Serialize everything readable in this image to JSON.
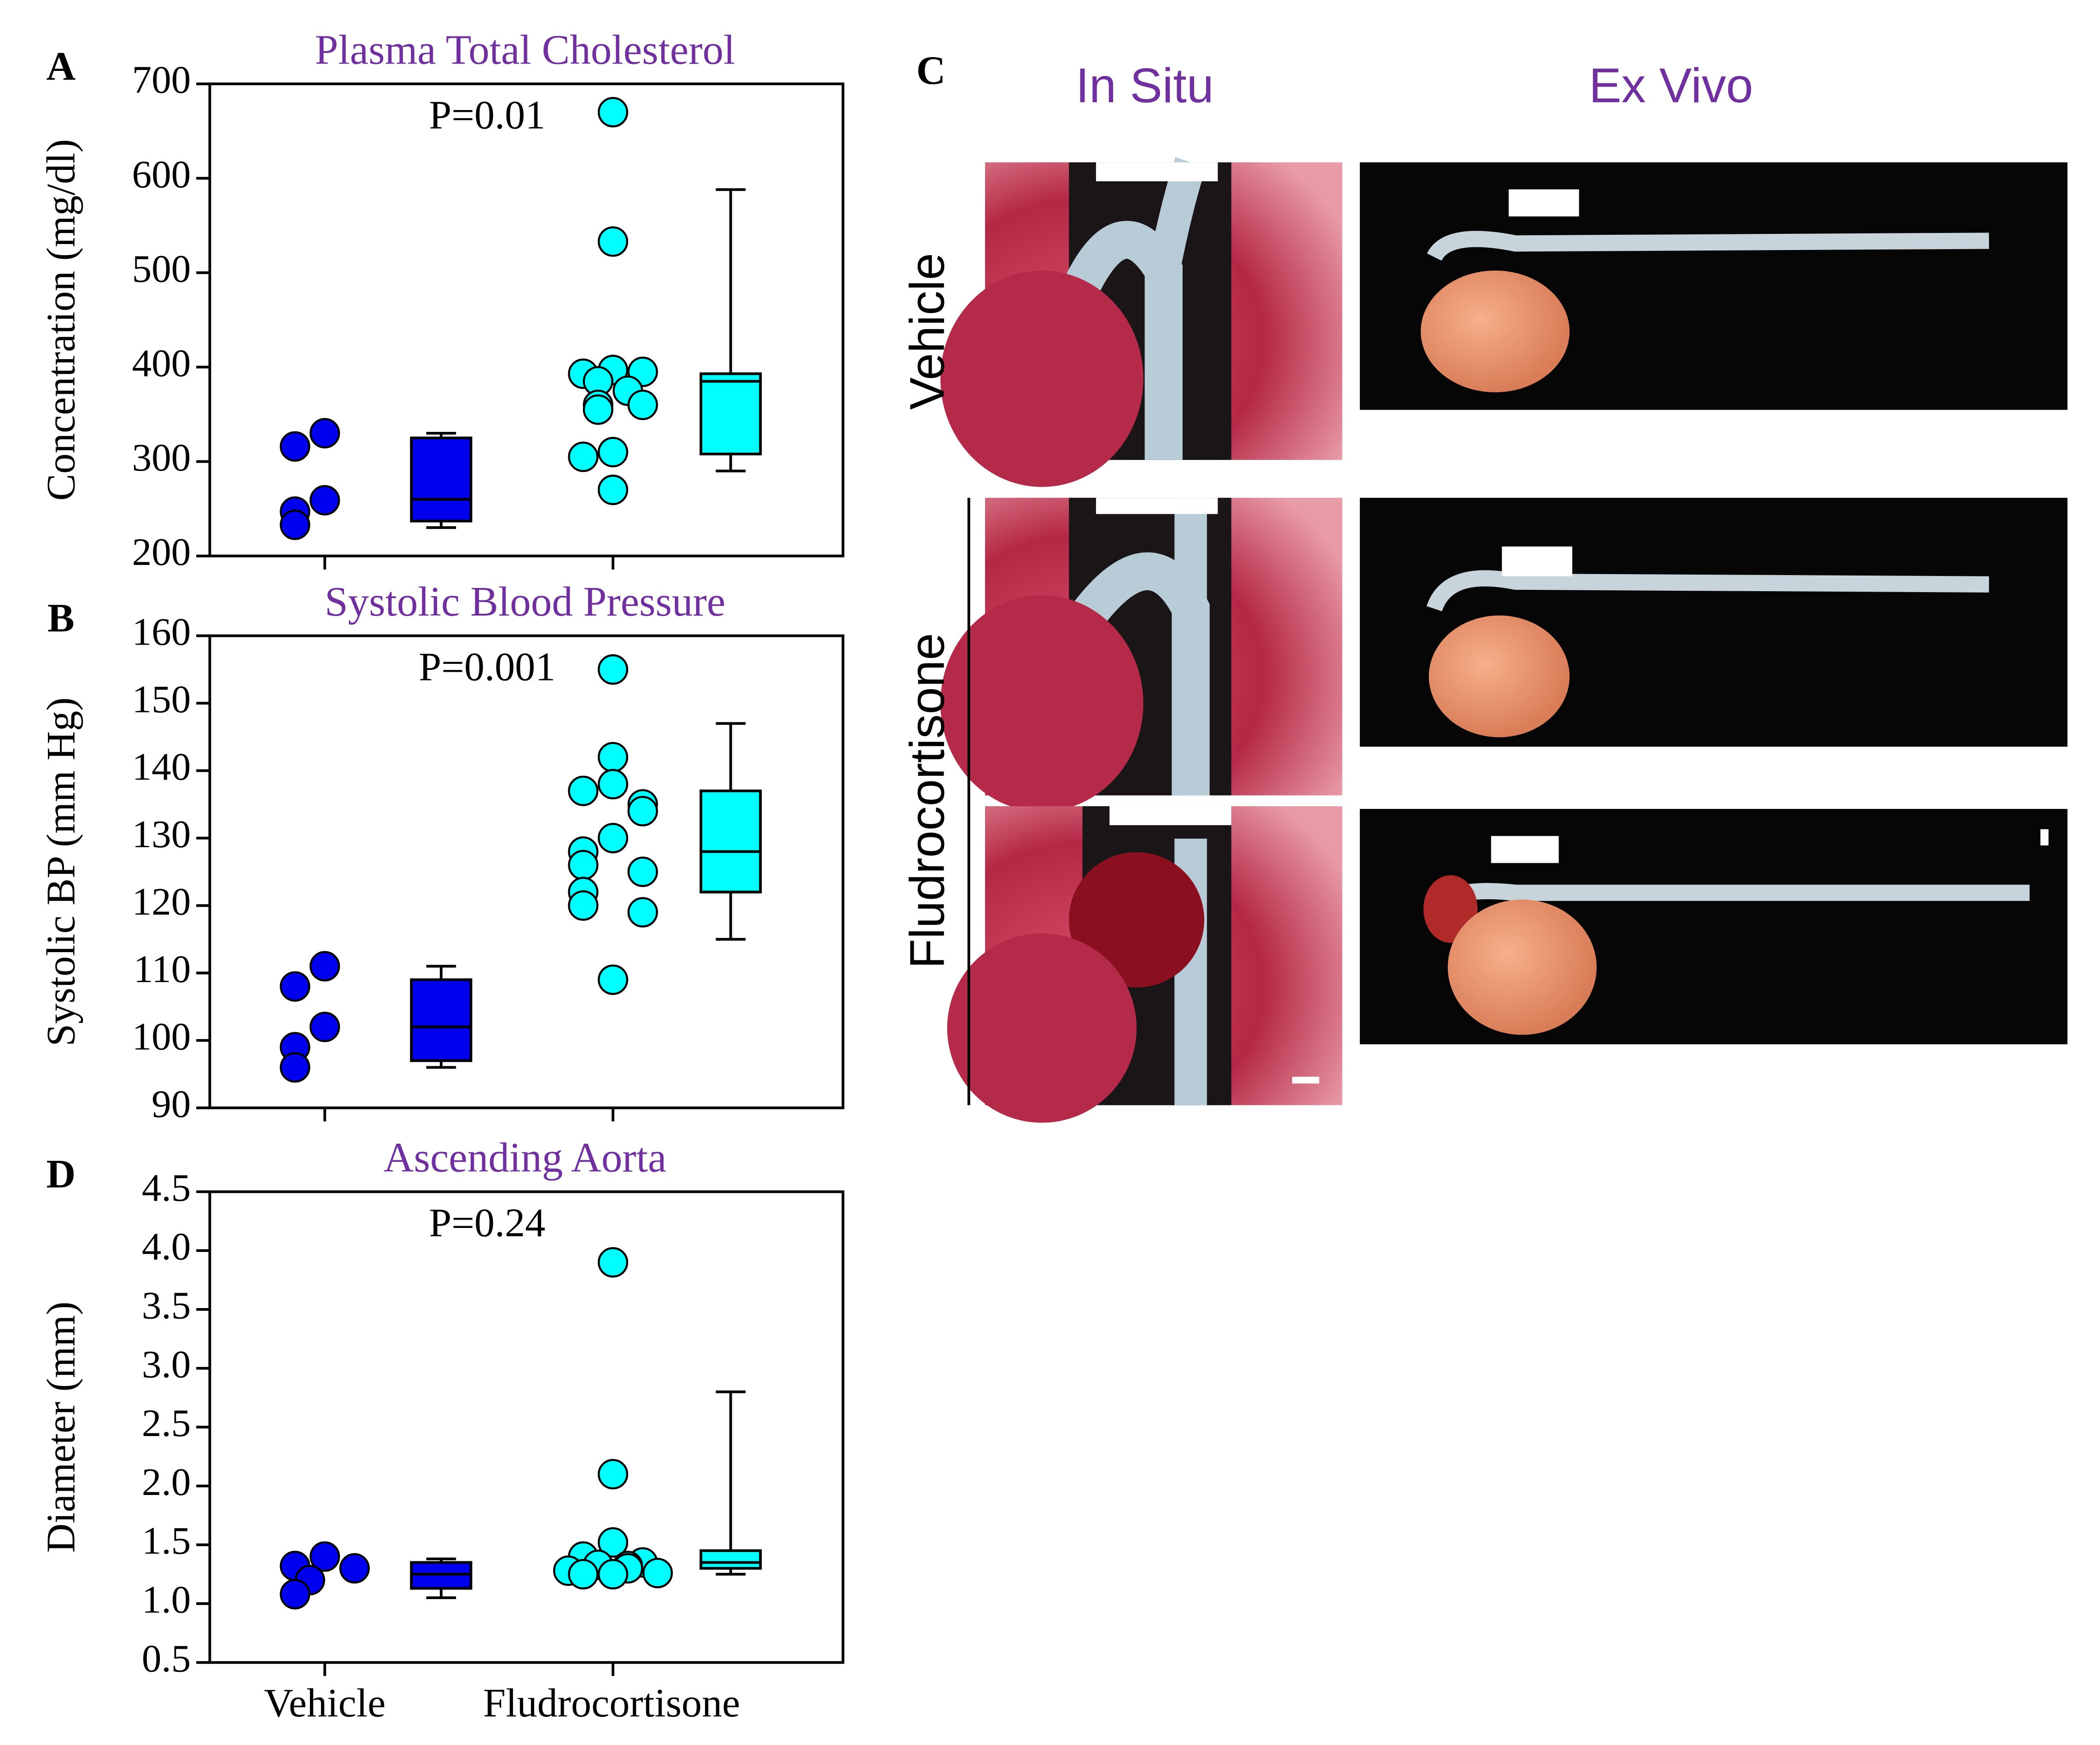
{
  "categories": [
    "Vehicle",
    "Fludrocortisone"
  ],
  "chart_data": [
    {
      "type": "dotbox",
      "panel": "A",
      "title": "Plasma Total Cholesterol",
      "ylabel": "Concentration (mg/dl)",
      "annotation": "P=0.01",
      "ylim": [
        200,
        700
      ],
      "yticks": [
        200,
        300,
        400,
        500,
        600,
        700
      ],
      "series": [
        {
          "color": "#0000ee",
          "values": [
            330,
            316,
            259,
            247,
            233
          ],
          "box": {
            "min": 230,
            "q1": 237,
            "median": 260,
            "q3": 325,
            "max": 330
          }
        },
        {
          "color": "#00ffff",
          "values": [
            670,
            533,
            397,
            393,
            395,
            385,
            375,
            360,
            360,
            355,
            310,
            305,
            270
          ],
          "box": {
            "min": 290,
            "q1": 308,
            "median": 385,
            "q3": 393,
            "max": 588
          }
        }
      ]
    },
    {
      "type": "dotbox",
      "panel": "B",
      "title": "Systolic Blood Pressure",
      "ylabel": "Systolic BP (mm Hg)",
      "annotation": "P=0.001",
      "ylim": [
        90,
        160
      ],
      "yticks": [
        90,
        100,
        110,
        120,
        130,
        140,
        150,
        160
      ],
      "series": [
        {
          "color": "#0000ee",
          "values": [
            111,
            108,
            102,
            99,
            96
          ],
          "box": {
            "min": 96,
            "q1": 97,
            "median": 102,
            "q3": 109,
            "max": 111
          }
        },
        {
          "color": "#00ffff",
          "values": [
            155,
            142,
            138,
            137,
            135,
            134,
            130,
            128,
            126,
            125,
            122,
            120,
            119,
            109
          ],
          "box": {
            "min": 115,
            "q1": 122,
            "median": 128,
            "q3": 137,
            "max": 147
          }
        }
      ]
    },
    {
      "type": "dotbox",
      "panel": "D",
      "title": "Ascending Aorta",
      "ylabel": "Diameter (mm)",
      "annotation": "P=0.24",
      "ylim": [
        0.5,
        4.5
      ],
      "yticks": [
        0.5,
        {
          "value": 1,
          "label": "1.0"
        },
        1.5,
        {
          "value": 2,
          "label": "2.0"
        },
        2.5,
        {
          "value": 3,
          "label": "3.0"
        },
        3.5,
        {
          "value": 4,
          "label": "4.0"
        },
        4.5
      ],
      "series": [
        {
          "color": "#0000ee",
          "values": [
            1.4,
            1.32,
            1.3,
            1.2,
            1.08
          ],
          "box": {
            "min": 1.05,
            "q1": 1.13,
            "median": 1.25,
            "q3": 1.35,
            "max": 1.38
          }
        },
        {
          "color": "#00ffff",
          "values": [
            3.9,
            2.1,
            1.52,
            1.4,
            1.35,
            1.33,
            1.32,
            1.3,
            1.28,
            1.26,
            1.25,
            1.25
          ],
          "box": {
            "min": 1.25,
            "q1": 1.3,
            "median": 1.35,
            "q3": 1.45,
            "max": 2.8
          }
        }
      ]
    }
  ],
  "panel_c": {
    "panel": "C",
    "columns": [
      "In Situ",
      "Ex Vivo"
    ],
    "rows": [
      "Vehicle",
      "Fludrocortisone"
    ]
  }
}
